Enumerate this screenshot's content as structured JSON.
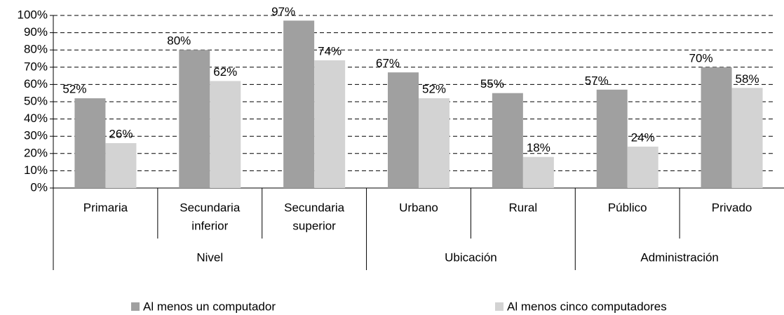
{
  "chart_data": {
    "type": "bar",
    "groups": [
      {
        "name": "Nivel",
        "categories": [
          [
            "Primaria"
          ],
          [
            "Secundaria",
            "inferior"
          ],
          [
            "Secundaria",
            "superior"
          ]
        ]
      },
      {
        "name": "Ubicación",
        "categories": [
          [
            "Urbano"
          ],
          [
            "Rural"
          ]
        ]
      },
      {
        "name": "Administración",
        "categories": [
          [
            "Público"
          ],
          [
            "Privado"
          ]
        ]
      }
    ],
    "series": [
      {
        "name": "Al menos un computador",
        "color": "#a0a0a0",
        "values": [
          52,
          80,
          97,
          67,
          55,
          57,
          70
        ],
        "value_labels": [
          "52%",
          "80%",
          "97%",
          "67%",
          "55%",
          "57%",
          "70%"
        ]
      },
      {
        "name": "Al menos cinco computadores",
        "color": "#d3d3d3",
        "values": [
          26,
          62,
          74,
          52,
          18,
          24,
          58
        ],
        "value_labels": [
          "26%",
          "62%",
          "74%",
          "52%",
          "18%",
          "24%",
          "58%"
        ]
      }
    ],
    "ylim": [
      0,
      100
    ],
    "yticks": [
      {
        "value": 0,
        "label": "0%"
      },
      {
        "value": 10,
        "label": "10%"
      },
      {
        "value": 20,
        "label": "20%"
      },
      {
        "value": 30,
        "label": "30%"
      },
      {
        "value": 40,
        "label": "40%"
      },
      {
        "value": 50,
        "label": "50%"
      },
      {
        "value": 60,
        "label": "60%"
      },
      {
        "value": 70,
        "label": "70%"
      },
      {
        "value": 80,
        "label": "80%"
      },
      {
        "value": 90,
        "label": "90%"
      },
      {
        "value": 100,
        "label": "100%"
      }
    ],
    "grid": true
  }
}
